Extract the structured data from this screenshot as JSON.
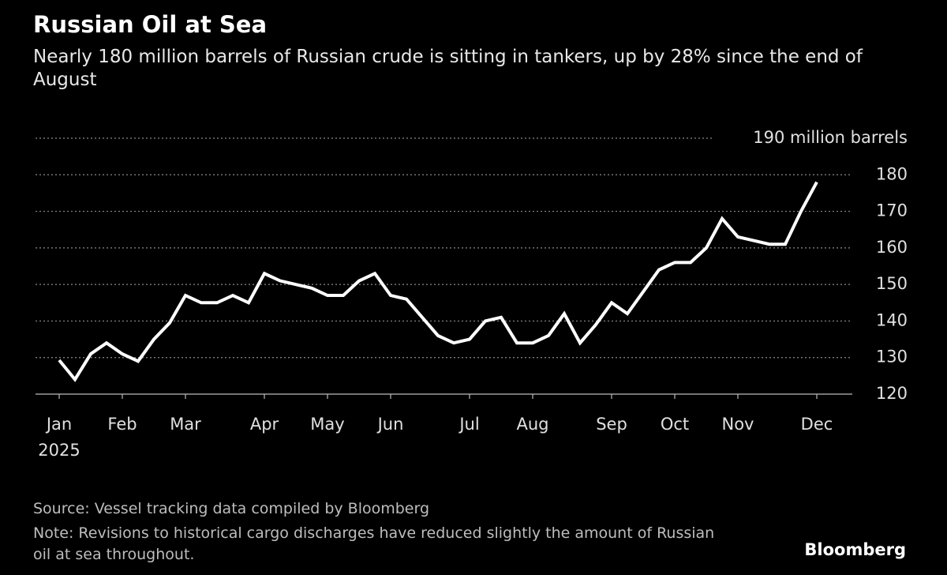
{
  "chart_data": {
    "type": "line",
    "title": "Russian Oil at Sea",
    "subtitle": "Nearly 180 million barrels of Russian crude is sitting in tankers, up by 28% since the end of August",
    "source": "Source: Vessel tracking data compiled by Bloomberg",
    "note": "Note: Revisions to historical cargo discharges have reduced slightly the amount of Russian oil at sea throughout.",
    "brand": "Bloomberg",
    "year_label": "2025",
    "x": [
      0,
      1,
      2,
      3,
      4,
      5,
      6,
      7,
      8,
      9,
      10,
      11,
      12,
      13,
      14,
      15,
      16,
      17,
      18,
      19,
      20,
      21,
      22,
      23,
      24,
      25,
      26,
      27,
      28,
      29,
      30,
      31,
      32,
      33,
      34,
      35,
      36,
      37,
      38,
      39,
      40,
      41,
      42,
      43,
      44,
      45,
      46,
      47,
      48
    ],
    "series": [
      {
        "name": "Russian oil at sea",
        "color": "#ffffff",
        "values": [
          129.3,
          124,
          131,
          134,
          131,
          129,
          135,
          139.5,
          147,
          145,
          145,
          147,
          145,
          153,
          151,
          150,
          149,
          147,
          147,
          151,
          153,
          147,
          146,
          141,
          136,
          134,
          135,
          140,
          141,
          134,
          134,
          136,
          142,
          134,
          139,
          145,
          142,
          148,
          154,
          156,
          156,
          160,
          168,
          163,
          162,
          161,
          161,
          170,
          178
        ]
      }
    ],
    "xlim": [
      -1.5,
      49.75
    ],
    "xticks": [
      {
        "value": 0,
        "label": "Jan"
      },
      {
        "value": 4,
        "label": "Feb"
      },
      {
        "value": 8,
        "label": "Mar"
      },
      {
        "value": 13,
        "label": "Apr"
      },
      {
        "value": 17,
        "label": "May"
      },
      {
        "value": 21,
        "label": "Jun"
      },
      {
        "value": 26,
        "label": "Jul"
      },
      {
        "value": 30,
        "label": "Aug"
      },
      {
        "value": 35,
        "label": "Sep"
      },
      {
        "value": 39,
        "label": "Oct"
      },
      {
        "value": 43,
        "label": "Nov"
      },
      {
        "value": 48,
        "label": "Dec"
      }
    ],
    "ylim": [
      120,
      190
    ],
    "yticks": [
      120,
      130,
      140,
      150,
      160,
      170,
      180,
      {
        "value": 190,
        "label": "190 million barrels"
      }
    ],
    "grid": true
  }
}
